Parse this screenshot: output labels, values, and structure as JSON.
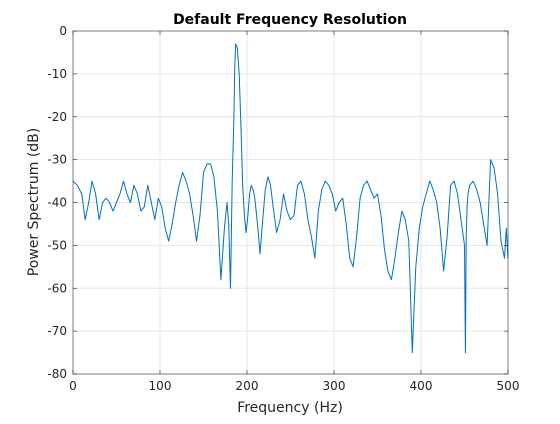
{
  "chart_data": {
    "type": "line",
    "title": "Default Frequency Resolution",
    "xlabel": "Frequency (Hz)",
    "ylabel": "Power Spectrum (dB)",
    "xlim": [
      0,
      500
    ],
    "ylim": [
      -80,
      0
    ],
    "x_ticks": [
      0,
      100,
      200,
      300,
      400,
      500
    ],
    "y_ticks": [
      0,
      -10,
      -20,
      -30,
      -40,
      -50,
      -60,
      -70,
      -80
    ],
    "grid": true,
    "series": [
      {
        "color": "#0072bd",
        "x": [
          0,
          5,
          10,
          14,
          18,
          22,
          26,
          30,
          34,
          38,
          42,
          46,
          50,
          54,
          58,
          62,
          66,
          70,
          74,
          78,
          82,
          86,
          90,
          94,
          98,
          102,
          106,
          110,
          114,
          118,
          122,
          126,
          130,
          134,
          138,
          142,
          146,
          150,
          154,
          158,
          162,
          166,
          170,
          174,
          177,
          179,
          181,
          183,
          185,
          186,
          187,
          189,
          191,
          193,
          195,
          197,
          199,
          201,
          203,
          205,
          207,
          209,
          211,
          213,
          215,
          218,
          221,
          224,
          227,
          230,
          234,
          238,
          242,
          246,
          250,
          254,
          258,
          262,
          266,
          270,
          274,
          278,
          282,
          286,
          290,
          294,
          298,
          302,
          306,
          310,
          314,
          318,
          322,
          326,
          330,
          334,
          338,
          342,
          346,
          350,
          354,
          358,
          362,
          366,
          370,
          374,
          378,
          382,
          386,
          390,
          394,
          398,
          402,
          406,
          410,
          414,
          418,
          422,
          426,
          430,
          434,
          438,
          442,
          446,
          450,
          451,
          452,
          453,
          454,
          456,
          460,
          464,
          468,
          472,
          476,
          480,
          484,
          488,
          492,
          496,
          498,
          500
        ],
        "y": [
          -35,
          -36,
          -38,
          -44,
          -40,
          -35,
          -38,
          -44,
          -40,
          -39,
          -40,
          -42,
          -40,
          -38,
          -35,
          -38,
          -40,
          -36,
          -38,
          -42,
          -41,
          -36,
          -40,
          -44,
          -39,
          -41,
          -46,
          -49,
          -45,
          -40,
          -36,
          -33,
          -35,
          -38,
          -43,
          -49,
          -43,
          -33,
          -31,
          -31,
          -34,
          -42,
          -58,
          -46,
          -40,
          -45,
          -60,
          -35,
          -20,
          -8,
          -3,
          -4,
          -10,
          -22,
          -36,
          -43,
          -47,
          -43,
          -38,
          -36,
          -37,
          -39,
          -43,
          -47,
          -52,
          -44,
          -37,
          -34,
          -36,
          -41,
          -47,
          -44,
          -38,
          -42,
          -44,
          -43,
          -36,
          -35,
          -38,
          -44,
          -48,
          -53,
          -42,
          -37,
          -35,
          -36,
          -38,
          -42,
          -40,
          -39,
          -45,
          -53,
          -55,
          -48,
          -39,
          -36,
          -35,
          -37,
          -39,
          -38,
          -43,
          -51,
          -56,
          -58,
          -53,
          -47,
          -42,
          -44,
          -49,
          -75,
          -55,
          -46,
          -41,
          -38,
          -35,
          -37,
          -40,
          -46,
          -56,
          -48,
          -36,
          -35,
          -38,
          -44,
          -50,
          -75,
          -48,
          -41,
          -38,
          -36,
          -35,
          -37,
          -40,
          -45,
          -50,
          -30,
          -32,
          -38,
          -49,
          -53,
          -46,
          -53
        ]
      }
    ]
  }
}
